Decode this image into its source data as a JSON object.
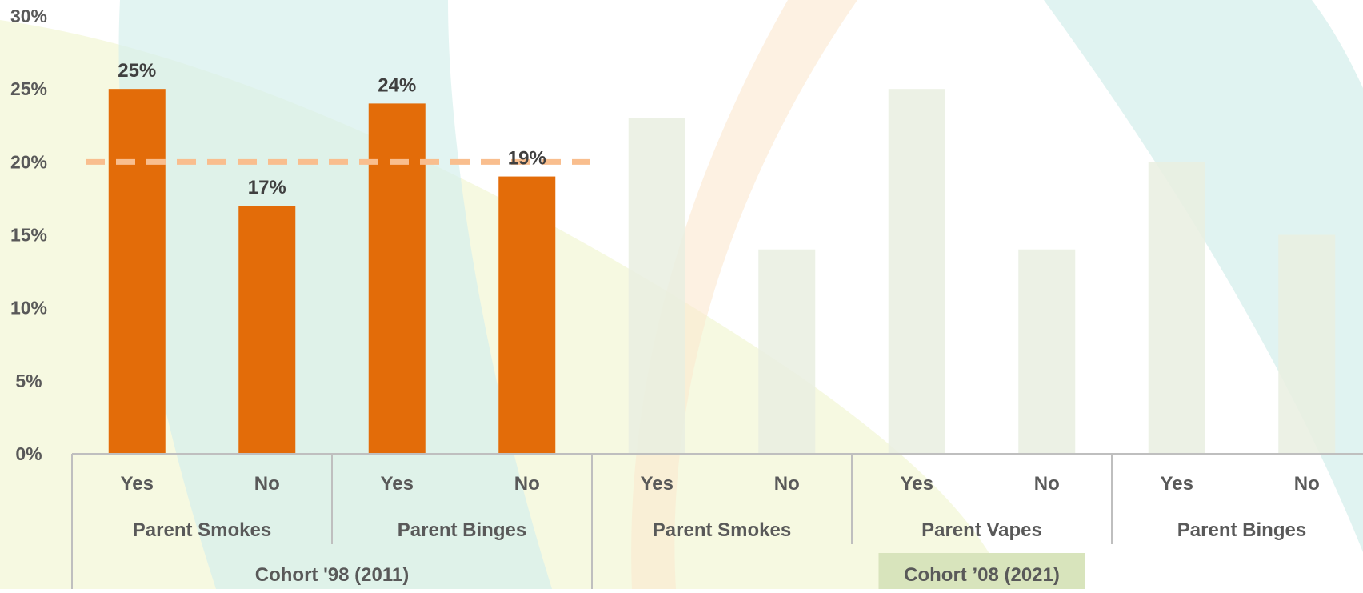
{
  "chart_data": {
    "type": "bar",
    "title": "",
    "xlabel": "",
    "ylabel": "",
    "ylim": [
      0,
      30
    ],
    "yticks": [
      "0%",
      "5%",
      "10%",
      "15%",
      "20%",
      "25%",
      "30%"
    ],
    "value_format": "percent",
    "reference_line": {
      "value": 20,
      "style": "dashed",
      "color": "#F9BE8E"
    },
    "colors": {
      "highlight": "#E36C09",
      "muted": "#E9EEE0",
      "axis": "#BFBFBF",
      "cohort_badge": "#D8E4BC"
    },
    "categories": [
      {
        "cohort": "Cohort '98 (2011)",
        "group": "Parent Smokes",
        "label": "Yes",
        "value": 25,
        "highlighted": true,
        "value_label": "25%"
      },
      {
        "cohort": "Cohort '98 (2011)",
        "group": "Parent Smokes",
        "label": "No",
        "value": 17,
        "highlighted": true,
        "value_label": "17%"
      },
      {
        "cohort": "Cohort '98 (2011)",
        "group": "Parent Binges",
        "label": "Yes",
        "value": 24,
        "highlighted": true,
        "value_label": "24%"
      },
      {
        "cohort": "Cohort '98 (2011)",
        "group": "Parent Binges",
        "label": "No",
        "value": 19,
        "highlighted": true,
        "value_label": "19%"
      },
      {
        "cohort": "Cohort ’08 (2021)",
        "group": "Parent Smokes",
        "label": "Yes",
        "value": 23,
        "highlighted": false
      },
      {
        "cohort": "Cohort ’08 (2021)",
        "group": "Parent Smokes",
        "label": "No",
        "value": 14,
        "highlighted": false
      },
      {
        "cohort": "Cohort ’08 (2021)",
        "group": "Parent Vapes",
        "label": "Yes",
        "value": 25,
        "highlighted": false
      },
      {
        "cohort": "Cohort ’08 (2021)",
        "group": "Parent Vapes",
        "label": "No",
        "value": 14,
        "highlighted": false
      },
      {
        "cohort": "Cohort ’08 (2021)",
        "group": "Parent Binges",
        "label": "Yes",
        "value": 20,
        "highlighted": false
      },
      {
        "cohort": "Cohort ’08 (2021)",
        "group": "Parent Binges",
        "label": "No",
        "value": 15,
        "highlighted": false
      }
    ],
    "groups": [
      {
        "label": "Parent Smokes",
        "cohort": "Cohort '98 (2011)"
      },
      {
        "label": "Parent Binges",
        "cohort": "Cohort '98 (2011)"
      },
      {
        "label": "Parent Smokes",
        "cohort": "Cohort ’08 (2021)"
      },
      {
        "label": "Parent Vapes",
        "cohort": "Cohort ’08 (2021)"
      },
      {
        "label": "Parent Binges",
        "cohort": "Cohort ’08 (2021)"
      }
    ],
    "cohorts": [
      {
        "label": "Cohort '98 (2011)",
        "highlighted": false
      },
      {
        "label": "Cohort ’08 (2021)",
        "highlighted": true
      }
    ]
  }
}
